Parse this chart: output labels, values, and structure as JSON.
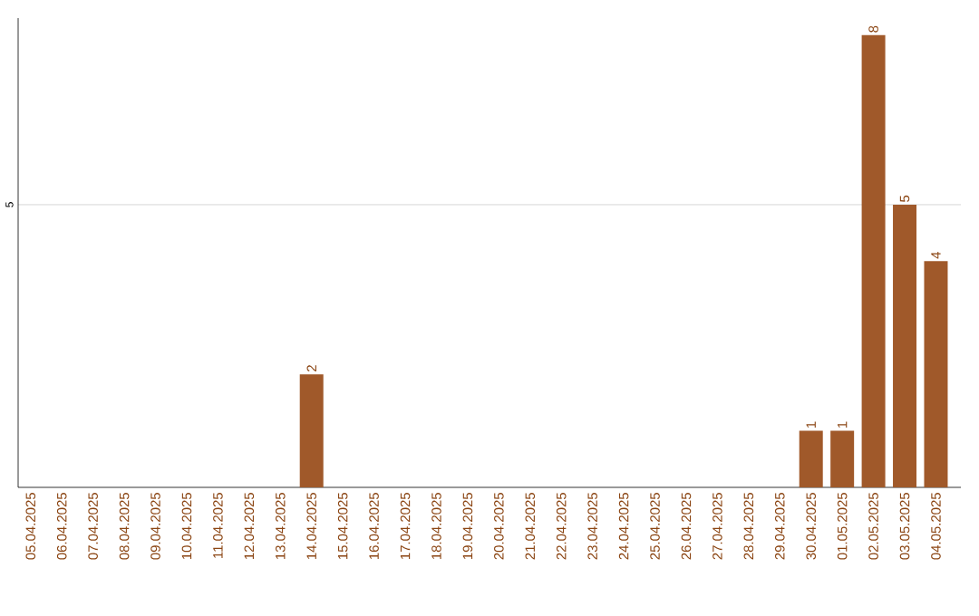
{
  "chart_data": {
    "type": "bar",
    "categories": [
      "05.04.2025",
      "06.04.2025",
      "07.04.2025",
      "08.04.2025",
      "09.04.2025",
      "10.04.2025",
      "11.04.2025",
      "12.04.2025",
      "13.04.2025",
      "14.04.2025",
      "15.04.2025",
      "16.04.2025",
      "17.04.2025",
      "18.04.2025",
      "19.04.2025",
      "20.04.2025",
      "21.04.2025",
      "22.04.2025",
      "23.04.2025",
      "24.04.2025",
      "25.04.2025",
      "26.04.2025",
      "27.04.2025",
      "28.04.2025",
      "29.04.2025",
      "30.04.2025",
      "01.05.2025",
      "02.05.2025",
      "03.05.2025",
      "04.05.2025"
    ],
    "values": [
      0,
      0,
      0,
      0,
      0,
      0,
      0,
      0,
      0,
      2,
      0,
      0,
      0,
      0,
      0,
      0,
      0,
      0,
      0,
      0,
      0,
      0,
      0,
      0,
      0,
      1,
      1,
      8,
      5,
      4
    ],
    "value_labels": [
      null,
      null,
      null,
      null,
      null,
      null,
      null,
      null,
      null,
      "2",
      null,
      null,
      null,
      null,
      null,
      null,
      null,
      null,
      null,
      null,
      null,
      null,
      null,
      null,
      null,
      "1",
      "1",
      "8",
      "5",
      "4"
    ],
    "color": "#a0592a",
    "ylim": [
      0,
      8.3
    ],
    "yticks": [
      5
    ],
    "grid": "y"
  }
}
